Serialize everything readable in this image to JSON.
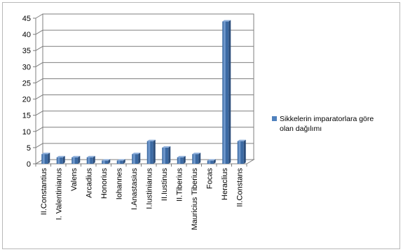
{
  "chart_data": {
    "type": "bar",
    "style": "3d-column",
    "categories": [
      "II.Constantius",
      "I. Valentinianus",
      "Valens",
      "Arcadius",
      "Honorius",
      "Iohannes",
      "I.Anastasius",
      "I.Iustinianus",
      "II.Iustinus",
      "II.Tiberius",
      "Mauricius Tiberius",
      "Focas",
      "Heraclius",
      "II.Constans"
    ],
    "series": [
      {
        "name": "Sikkelerin imparatorlara göre olan dağılımı",
        "values": [
          3,
          2,
          2,
          2,
          1,
          1,
          3,
          7,
          5,
          2,
          3,
          1,
          44,
          7
        ],
        "color": "#4f81bd"
      }
    ],
    "ylim": [
      0,
      45
    ],
    "yticks": [
      0,
      5,
      10,
      15,
      20,
      25,
      30,
      35,
      40,
      45
    ],
    "grid": true,
    "legend_position": "right"
  }
}
